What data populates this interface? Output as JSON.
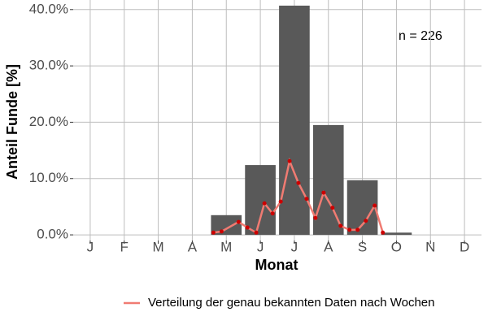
{
  "chart_data": {
    "type": "bar",
    "categories": [
      "J",
      "F",
      "M",
      "A",
      "M",
      "J",
      "J",
      "A",
      "S",
      "O",
      "N",
      "D"
    ],
    "values": [
      0,
      0,
      0,
      0,
      3.5,
      12.4,
      40.7,
      19.5,
      9.7,
      0.4,
      0,
      0
    ],
    "color": "#595959",
    "line": {
      "name": "Verteilung der genau bekannten Daten nach Wochen",
      "color": "#f07b72",
      "point_color": "#cc0000",
      "x": [
        4.62,
        4.86,
        5.36,
        5.62,
        5.88,
        6.12,
        6.36,
        6.6,
        6.86,
        7.12,
        7.36,
        7.62,
        7.86,
        8.12,
        8.36,
        8.62,
        8.86,
        9.1,
        9.36,
        9.6
      ],
      "values": [
        0.4,
        0.6,
        2.3,
        1.3,
        0.4,
        5.6,
        3.8,
        5.9,
        13.1,
        9.2,
        6.4,
        3.0,
        7.5,
        4.8,
        1.6,
        0.9,
        0.9,
        2.5,
        5.2,
        0.4
      ]
    },
    "xlim": [
      0.5,
      12.5
    ],
    "ylim": [
      -1,
      41.7
    ],
    "yticks": [
      {
        "value": 0,
        "label": "0.0%"
      },
      {
        "value": 10,
        "label": "10.0%"
      },
      {
        "value": 20,
        "label": "20.0%"
      },
      {
        "value": 30,
        "label": "30.0%"
      },
      {
        "value": 40,
        "label": "40.0%"
      }
    ],
    "grid": true,
    "x_label": "Monat",
    "y_label": "Anteil Funde [%]",
    "annotation": "n = 226",
    "legend": "bottom"
  }
}
